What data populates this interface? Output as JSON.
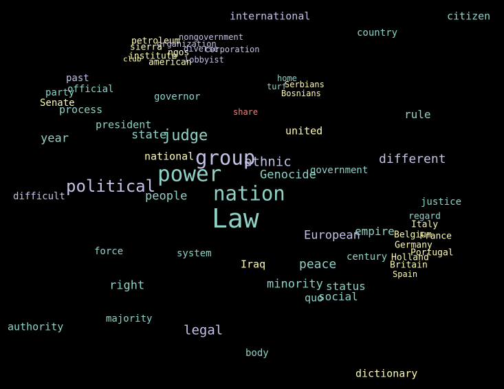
{
  "words": [
    {
      "text": "international",
      "color_class": "c-lav"
    },
    {
      "text": "citizen",
      "color_class": "c-teal"
    },
    {
      "text": "country",
      "color_class": "c-teal"
    },
    {
      "text": "nongovernment",
      "color_class": "c-lav"
    },
    {
      "text": "petroleum",
      "color_class": "c-yellow"
    },
    {
      "text": "organization",
      "color_class": "c-lav"
    },
    {
      "text": "sierra",
      "color_class": "c-yellow"
    },
    {
      "text": "diverse",
      "color_class": "c-lav"
    },
    {
      "text": "corporation",
      "color_class": "c-lav"
    },
    {
      "text": "ngos",
      "color_class": "c-yellow"
    },
    {
      "text": "institute",
      "color_class": "c-yellow"
    },
    {
      "text": "club",
      "color_class": "c-yellow"
    },
    {
      "text": "american",
      "color_class": "c-yellow"
    },
    {
      "text": "lobbyist",
      "color_class": "c-lav"
    },
    {
      "text": "past",
      "color_class": "c-lav"
    },
    {
      "text": "home",
      "color_class": "c-teal"
    },
    {
      "text": "turf",
      "color_class": "c-teal"
    },
    {
      "text": "Serbians",
      "color_class": "c-yellow"
    },
    {
      "text": "official",
      "color_class": "c-teal"
    },
    {
      "text": "party",
      "color_class": "c-teal"
    },
    {
      "text": "Bosnians",
      "color_class": "c-yellow"
    },
    {
      "text": "governor",
      "color_class": "c-teal"
    },
    {
      "text": "Senate",
      "color_class": "c-yellow"
    },
    {
      "text": "process",
      "color_class": "c-teal"
    },
    {
      "text": "share",
      "color_class": "c-salmon"
    },
    {
      "text": "rule",
      "color_class": "c-teal"
    },
    {
      "text": "president",
      "color_class": "c-teal"
    },
    {
      "text": "united",
      "color_class": "c-yellow"
    },
    {
      "text": "state",
      "color_class": "c-teal"
    },
    {
      "text": "judge",
      "color_class": "c-teal"
    },
    {
      "text": "year",
      "color_class": "c-teal"
    },
    {
      "text": "national",
      "color_class": "c-yellow"
    },
    {
      "text": "group",
      "color_class": "c-lav"
    },
    {
      "text": "different",
      "color_class": "c-lav"
    },
    {
      "text": "ethnic",
      "color_class": "c-lav"
    },
    {
      "text": "government",
      "color_class": "c-teal"
    },
    {
      "text": "power",
      "color_class": "c-teal"
    },
    {
      "text": "Genocide",
      "color_class": "c-teal"
    },
    {
      "text": "political",
      "color_class": "c-lav"
    },
    {
      "text": "nation",
      "color_class": "c-teal"
    },
    {
      "text": "difficult",
      "color_class": "c-lav"
    },
    {
      "text": "people",
      "color_class": "c-teal"
    },
    {
      "text": "justice",
      "color_class": "c-teal"
    },
    {
      "text": "regard",
      "color_class": "c-teal"
    },
    {
      "text": "Law",
      "color_class": "c-teal"
    },
    {
      "text": "Italy",
      "color_class": "c-yellow"
    },
    {
      "text": "empire",
      "color_class": "c-teal"
    },
    {
      "text": "European",
      "color_class": "c-lav"
    },
    {
      "text": "Belgium",
      "color_class": "c-yellow"
    },
    {
      "text": "France",
      "color_class": "c-yellow"
    },
    {
      "text": "Germany",
      "color_class": "c-yellow"
    },
    {
      "text": "force",
      "color_class": "c-teal"
    },
    {
      "text": "system",
      "color_class": "c-teal"
    },
    {
      "text": "Portugal",
      "color_class": "c-yellow"
    },
    {
      "text": "century",
      "color_class": "c-teal"
    },
    {
      "text": "Holland",
      "color_class": "c-yellow"
    },
    {
      "text": "Iraq",
      "color_class": "c-yellow"
    },
    {
      "text": "peace",
      "color_class": "c-teal"
    },
    {
      "text": "Britain",
      "color_class": "c-yellow"
    },
    {
      "text": "Spain",
      "color_class": "c-yellow"
    },
    {
      "text": "right",
      "color_class": "c-teal"
    },
    {
      "text": "minority",
      "color_class": "c-teal"
    },
    {
      "text": "status",
      "color_class": "c-teal"
    },
    {
      "text": "quo",
      "color_class": "c-teal"
    },
    {
      "text": "social",
      "color_class": "c-teal"
    },
    {
      "text": "majority",
      "color_class": "c-teal"
    },
    {
      "text": "authority",
      "color_class": "c-teal"
    },
    {
      "text": "legal",
      "color_class": "c-lav"
    },
    {
      "text": "body",
      "color_class": "c-teal"
    },
    {
      "text": "dictionary",
      "color_class": "c-yellow"
    }
  ]
}
